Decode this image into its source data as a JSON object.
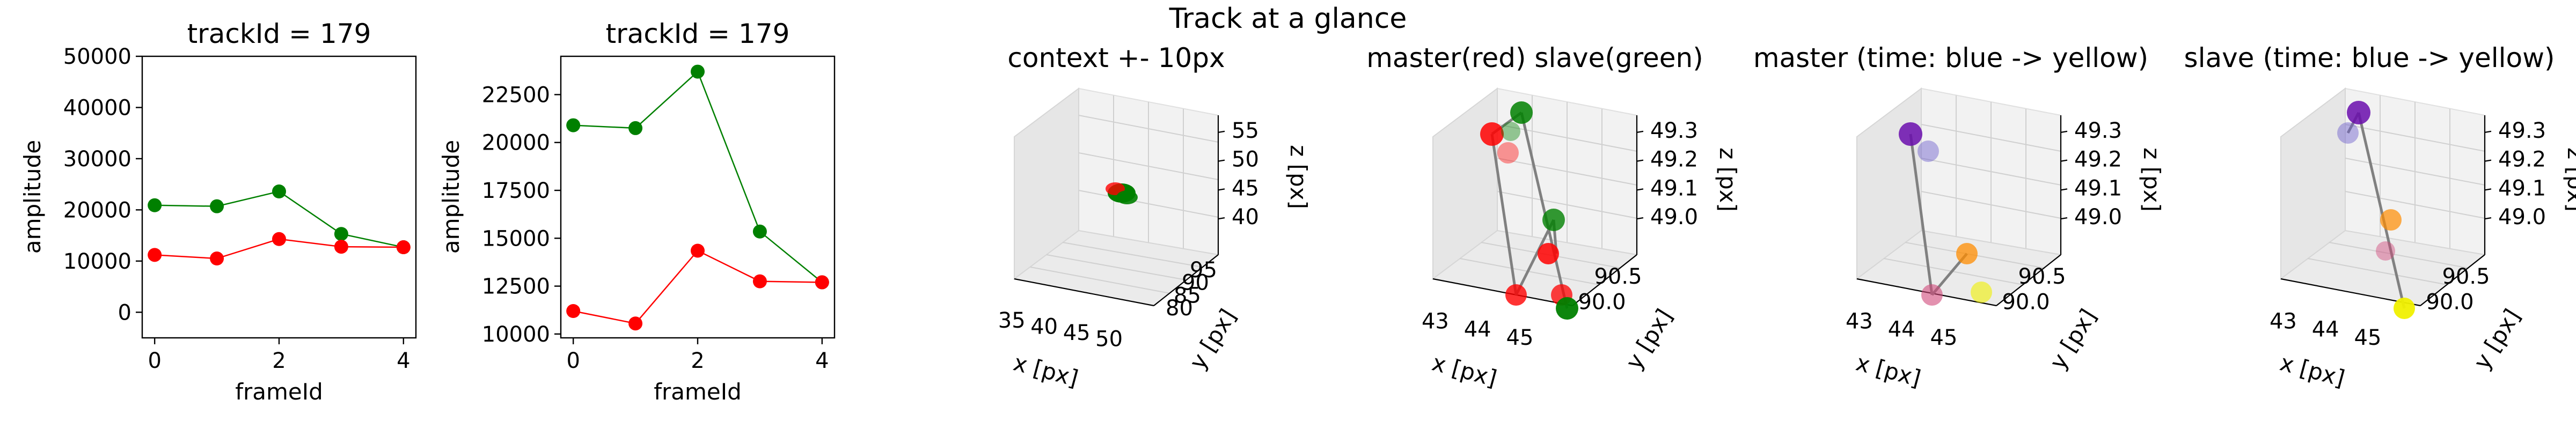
{
  "figure": {
    "suptitle": "Track at a glance"
  },
  "chart_data": [
    {
      "type": "line",
      "title": "trackId = 179",
      "xlabel": "frameId",
      "ylabel": "amplitude",
      "x": [
        0,
        1,
        2,
        3,
        4
      ],
      "xticks": [
        "0",
        "2",
        "4"
      ],
      "yticks": [
        "0",
        "10000",
        "20000",
        "30000",
        "40000",
        "50000"
      ],
      "ylim": [
        -5000,
        50000
      ],
      "xlim": [
        -0.2,
        4.2
      ],
      "series": [
        {
          "values": [
            20900,
            20700,
            23600,
            15300,
            12700
          ],
          "color": "#008000"
        },
        {
          "values": [
            11200,
            10500,
            14300,
            12800,
            12700
          ],
          "color": "#ff0000"
        }
      ]
    },
    {
      "type": "line",
      "title": "trackId = 179",
      "xlabel": "frameId",
      "ylabel": "amplitude",
      "x": [
        0,
        1,
        2,
        3,
        4
      ],
      "xticks": [
        "0",
        "2",
        "4"
      ],
      "yticks": [
        "10000",
        "12500",
        "15000",
        "17500",
        "20000",
        "22500"
      ],
      "ylim": [
        9800,
        24500
      ],
      "xlim": [
        -0.2,
        4.2
      ],
      "series": [
        {
          "values": [
            20900,
            20750,
            23700,
            15350,
            12700
          ],
          "color": "#008000"
        },
        {
          "values": [
            11200,
            10550,
            14350,
            12750,
            12700
          ],
          "color": "#ff0000"
        }
      ]
    },
    {
      "type": "scatter",
      "title": "context +- 10px",
      "xlabel": "x [px]",
      "ylabel": "y [px]",
      "zlabel": "z [px]",
      "xticks": [
        "35",
        "40",
        "45",
        "50"
      ],
      "yticks": [
        "80",
        "85",
        "90",
        "95"
      ],
      "zticks": [
        "40",
        "45",
        "50",
        "55"
      ]
    },
    {
      "type": "scatter",
      "title": "master(red) slave(green)",
      "xlabel": "x [px]",
      "ylabel": "y [px]",
      "zlabel": "z [px]",
      "xticks": [
        "43",
        "44",
        "45"
      ],
      "yticks": [
        "90.0",
        "90.5"
      ],
      "zticks": [
        "49.0",
        "49.1",
        "49.2",
        "49.3"
      ]
    },
    {
      "type": "scatter",
      "title": "master (time: blue -> yellow)",
      "xlabel": "x [px]",
      "ylabel": "y [px]",
      "zlabel": "z [px]",
      "xticks": [
        "43",
        "44",
        "45"
      ],
      "yticks": [
        "90.0",
        "90.5"
      ],
      "zticks": [
        "49.0",
        "49.1",
        "49.2",
        "49.3"
      ]
    },
    {
      "type": "scatter",
      "title": "slave (time: blue -> yellow)",
      "xlabel": "x [px]",
      "ylabel": "y [px]",
      "zlabel": "z [px]",
      "xticks": [
        "43",
        "44",
        "45"
      ],
      "yticks": [
        "90.0",
        "90.5"
      ],
      "zticks": [
        "49.0",
        "49.1",
        "49.2",
        "49.3"
      ]
    }
  ]
}
